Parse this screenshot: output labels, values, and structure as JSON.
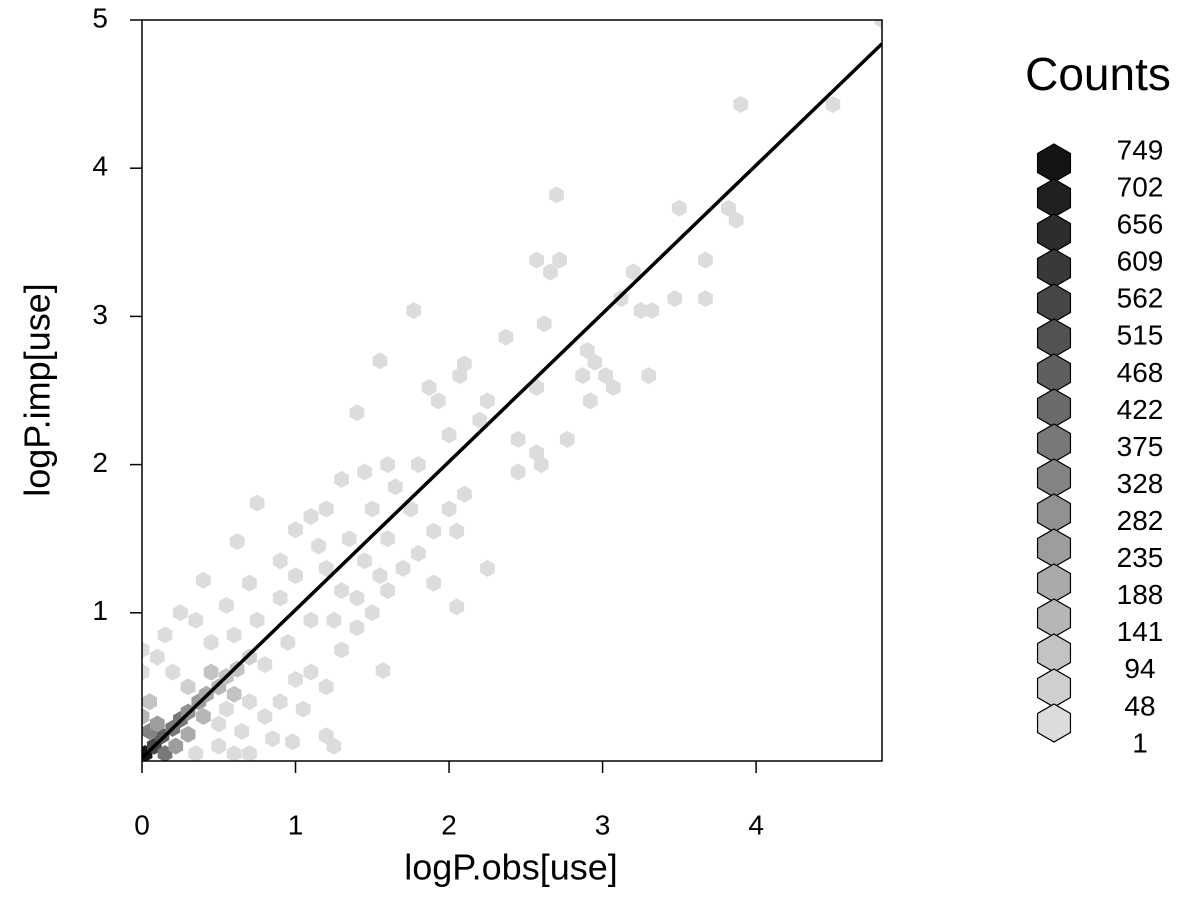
{
  "chart_data": {
    "type": "hexbin",
    "xlabel": "logP.obs[use]",
    "ylabel": "logP.imp[use]",
    "xlim": [
      0,
      4.82
    ],
    "ylim": [
      0,
      5
    ],
    "xticks": [
      0,
      1,
      2,
      3,
      4
    ],
    "yticks": [
      1,
      2,
      3,
      4,
      5
    ],
    "line": {
      "intercept": 0.02,
      "slope": 1.0,
      "color": "#000000"
    },
    "legend": {
      "title": "Counts",
      "levels": [
        749,
        702,
        656,
        609,
        562,
        515,
        468,
        422,
        375,
        328,
        282,
        235,
        188,
        141,
        94,
        48,
        1
      ],
      "colors": [
        "#141414",
        "#202020",
        "#2d2d2d",
        "#393939",
        "#464646",
        "#525252",
        "#5f5f5f",
        "#6b6b6b",
        "#787878",
        "#848484",
        "#919191",
        "#9d9d9d",
        "#aaaaaa",
        "#b6b6b6",
        "#c3c3c3",
        "#cfcfcf",
        "#dcdcdc"
      ]
    },
    "hexes": {
      "x": [
        0.0,
        0.0,
        0.1,
        0.2,
        0.3,
        0.5,
        0.6,
        0.7,
        0.65,
        0.5,
        0.35,
        0.8,
        0.9,
        1.0,
        1.1,
        1.3,
        1.4,
        1.5,
        1.6,
        1.7,
        1.8,
        1.9,
        2.0,
        2.1,
        1.2,
        1.35,
        1.5,
        1.65,
        0.9,
        0.75,
        0.6,
        0.45,
        1.0,
        1.15,
        1.45,
        1.6,
        1.75,
        1.3,
        1.1,
        0.95,
        0.8,
        1.25,
        1.4,
        1.55,
        0.7,
        0.55,
        1.05,
        1.2,
        0.85,
        1.9,
        2.05,
        1.8,
        1.6,
        1.45,
        1.2,
        0.9,
        0.7,
        0.55,
        0.35,
        0.15,
        4.5,
        3.9,
        4.82,
        2.7,
        3.5,
        3.82,
        3.87,
        2.57,
        2.72,
        2.66,
        3.67,
        3.2,
        3.12,
        3.47,
        3.67,
        3.25,
        3.32,
        1.77,
        2.62,
        2.37,
        2.9,
        2.95,
        3.02,
        3.3,
        2.87,
        3.07,
        2.57,
        2.92,
        2.25,
        1.4,
        2.45,
        2.57,
        2.77,
        2.45,
        2.6,
        2.05,
        2.25,
        1.57,
        0.75,
        0.62,
        1.0,
        0.25,
        0.4,
        1.25,
        1.2,
        0.98,
        1.1,
        1.3,
        1.55,
        1.87,
        2.07,
        2.1,
        1.93,
        2.2,
        2.0,
        0.02,
        0.08,
        0.13,
        0.2,
        0.25,
        0.3,
        0.37,
        0.42,
        0.5,
        0.55,
        0.62,
        0.7,
        0.05,
        0.1,
        0.15,
        0.22,
        0.3,
        0.0,
        0.05,
        0.4,
        0.45,
        0.6
      ],
      "y": [
        0.6,
        0.75,
        0.7,
        0.6,
        0.5,
        0.1,
        0.05,
        0.05,
        0.2,
        0.25,
        0.05,
        0.3,
        0.4,
        0.55,
        0.6,
        0.75,
        0.9,
        1.0,
        1.15,
        1.3,
        1.4,
        1.55,
        1.7,
        1.8,
        1.3,
        1.5,
        1.7,
        1.85,
        1.1,
        0.95,
        0.85,
        0.8,
        1.25,
        1.45,
        1.35,
        1.5,
        1.7,
        1.15,
        0.95,
        0.8,
        0.65,
        0.95,
        1.1,
        1.25,
        0.4,
        0.35,
        0.35,
        0.5,
        0.15,
        1.2,
        1.55,
        2.0,
        2.0,
        1.95,
        1.7,
        1.35,
        1.2,
        1.05,
        0.95,
        0.85,
        4.43,
        4.43,
        5.0,
        3.82,
        3.73,
        3.73,
        3.65,
        3.38,
        3.38,
        3.3,
        3.38,
        3.3,
        3.12,
        3.12,
        3.12,
        3.04,
        3.04,
        3.04,
        2.95,
        2.86,
        2.77,
        2.69,
        2.6,
        2.6,
        2.6,
        2.52,
        2.52,
        2.43,
        2.43,
        2.35,
        2.17,
        2.08,
        2.17,
        1.95,
        2.0,
        1.04,
        1.3,
        0.61,
        1.74,
        1.48,
        1.56,
        1.0,
        1.22,
        0.1,
        0.17,
        0.13,
        1.65,
        1.9,
        2.7,
        2.52,
        2.6,
        2.68,
        2.43,
        2.3,
        2.2,
        0.05,
        0.1,
        0.17,
        0.22,
        0.28,
        0.33,
        0.4,
        0.45,
        0.5,
        0.57,
        0.62,
        0.7,
        0.2,
        0.25,
        0.05,
        0.1,
        0.18,
        0.3,
        0.4,
        0.3,
        0.6,
        0.45
      ],
      "counts": [
        30,
        15,
        40,
        45,
        50,
        20,
        12,
        8,
        25,
        35,
        18,
        30,
        28,
        26,
        24,
        20,
        18,
        16,
        14,
        10,
        9,
        7,
        5,
        4,
        12,
        9,
        6,
        4,
        14,
        16,
        18,
        20,
        10,
        7,
        12,
        9,
        5,
        15,
        20,
        22,
        25,
        14,
        12,
        10,
        35,
        40,
        20,
        15,
        10,
        4,
        3,
        2,
        3,
        3,
        4,
        6,
        5,
        6,
        4,
        8,
        1,
        1,
        1,
        1,
        1,
        1,
        1,
        1,
        1,
        1,
        1,
        1,
        1,
        1,
        1,
        1,
        1,
        1,
        1,
        1,
        1,
        1,
        1,
        1,
        1,
        1,
        1,
        1,
        1,
        1,
        1,
        1,
        1,
        1,
        1,
        1,
        1,
        1,
        1,
        1,
        1,
        1,
        1,
        1,
        1,
        1,
        2,
        2,
        1,
        1,
        1,
        1,
        1,
        2,
        2,
        749,
        600,
        500,
        420,
        375,
        300,
        250,
        200,
        170,
        140,
        110,
        90,
        330,
        280,
        380,
        250,
        200,
        150,
        100,
        160,
        120,
        110
      ]
    }
  }
}
